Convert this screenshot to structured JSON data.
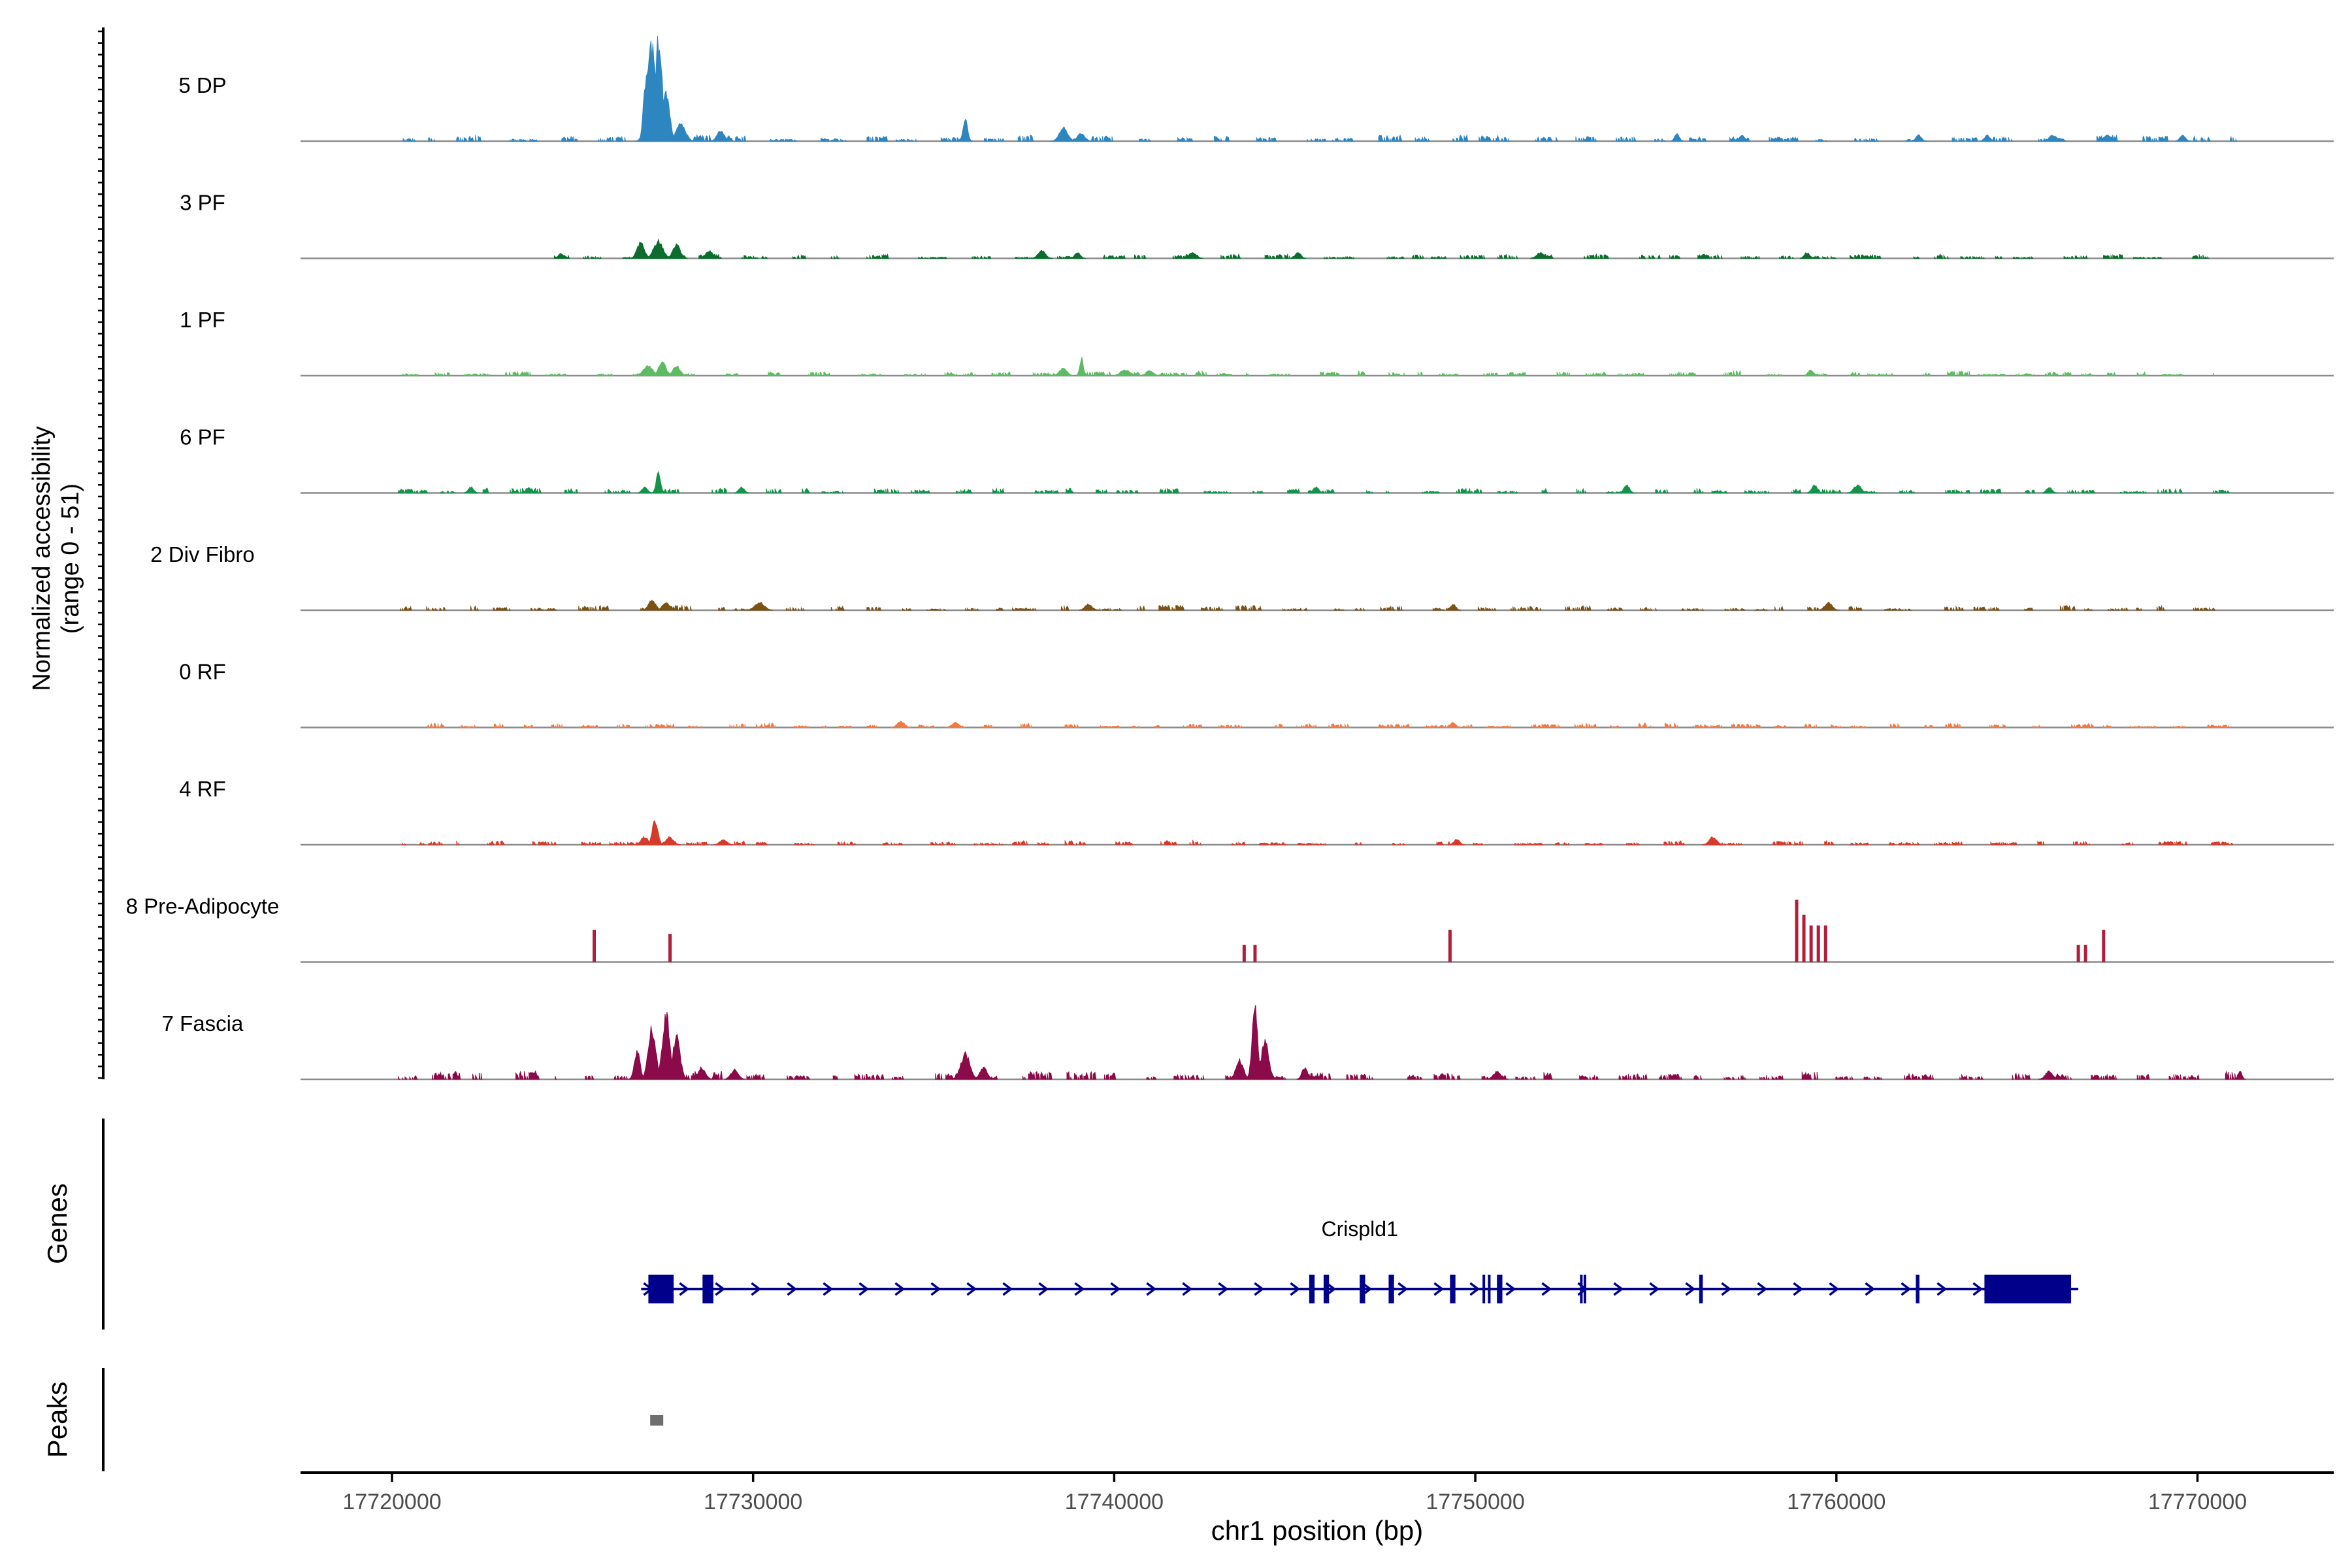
{
  "chart_data": {
    "type": "area",
    "title": "",
    "ylabel_line1": "Normalized accessibility",
    "ylabel_line2": "(range 0 - 51)",
    "ylim": [
      0,
      51
    ],
    "xlabel": "chr1 position (bp)",
    "xlim": [
      17717500,
      17773900
    ],
    "xticks": [
      17720000,
      17730000,
      17740000,
      17750000,
      17760000,
      17770000
    ],
    "xtick_labels": [
      "17720000",
      "17730000",
      "17740000",
      "17750000",
      "17760000",
      "17770000"
    ],
    "tracks": [
      {
        "name": "5 DP",
        "color": "#2E86C1",
        "peaks": [
          [
            17727200,
            50,
            250
          ],
          [
            17727400,
            51,
            200
          ],
          [
            17727050,
            36,
            150
          ],
          [
            17727600,
            24,
            200
          ],
          [
            17728000,
            9,
            250
          ],
          [
            17729100,
            5,
            200
          ],
          [
            17735900,
            11,
            120
          ],
          [
            17738600,
            7,
            220
          ],
          [
            17739100,
            4,
            200
          ],
          [
            17755600,
            4,
            120
          ],
          [
            17757400,
            3,
            150
          ],
          [
            17762300,
            3,
            150
          ],
          [
            17764200,
            3,
            150
          ],
          [
            17766000,
            3,
            200
          ],
          [
            17767500,
            3,
            200
          ],
          [
            17769600,
            3,
            150
          ]
        ],
        "noise": {
          "start": 17720300,
          "end": 17771100,
          "max": 2.5,
          "seed": 11
        }
      },
      {
        "name": "3 PF",
        "color": "#0B6E2E",
        "peaks": [
          [
            17726900,
            8,
            200
          ],
          [
            17727400,
            9,
            250
          ],
          [
            17727900,
            7,
            200
          ],
          [
            17728800,
            4,
            200
          ],
          [
            17724700,
            2.5,
            150
          ],
          [
            17738000,
            4,
            200
          ],
          [
            17739000,
            3,
            150
          ],
          [
            17742200,
            3,
            200
          ],
          [
            17745100,
            3,
            150
          ],
          [
            17751800,
            3,
            200
          ],
          [
            17759200,
            3,
            150
          ]
        ],
        "noise": {
          "start": 17724500,
          "end": 17771000,
          "max": 1.8,
          "seed": 23
        }
      },
      {
        "name": "1 PF",
        "color": "#5DBB63",
        "peaks": [
          [
            17727100,
            5,
            250
          ],
          [
            17727500,
            7,
            200
          ],
          [
            17727900,
            5,
            200
          ],
          [
            17739100,
            9,
            100
          ],
          [
            17738600,
            4,
            200
          ],
          [
            17740300,
            3,
            250
          ],
          [
            17741000,
            2.5,
            200
          ],
          [
            17759300,
            3,
            150
          ]
        ],
        "noise": {
          "start": 17720200,
          "end": 17770500,
          "max": 2.0,
          "seed": 37
        }
      },
      {
        "name": "6 PF",
        "color": "#14934A",
        "peaks": [
          [
            17727400,
            10,
            120
          ],
          [
            17727000,
            3,
            150
          ],
          [
            17722200,
            3,
            150
          ],
          [
            17723800,
            2.5,
            150
          ],
          [
            17729700,
            3,
            150
          ],
          [
            17745600,
            3,
            150
          ],
          [
            17754200,
            4,
            150
          ],
          [
            17759400,
            4,
            150
          ],
          [
            17760600,
            4,
            200
          ],
          [
            17765900,
            3,
            150
          ]
        ],
        "noise": {
          "start": 17720200,
          "end": 17771300,
          "max": 2.0,
          "seed": 51
        }
      },
      {
        "name": "2 Div Fibro",
        "color": "#7A5214",
        "peaks": [
          [
            17727200,
            5,
            200
          ],
          [
            17727600,
            4,
            200
          ],
          [
            17730200,
            4,
            250
          ],
          [
            17739300,
            3,
            200
          ],
          [
            17749400,
            3,
            150
          ],
          [
            17759800,
            4,
            200
          ]
        ],
        "noise": {
          "start": 17720200,
          "end": 17770500,
          "max": 2.0,
          "seed": 67
        }
      },
      {
        "name": "0 RF",
        "color": "#F07A45",
        "peaks": [
          [
            17734100,
            3,
            200
          ],
          [
            17735600,
            2.5,
            200
          ],
          [
            17749400,
            2.5,
            150
          ]
        ],
        "noise": {
          "start": 17721000,
          "end": 17770900,
          "max": 1.8,
          "seed": 79
        }
      },
      {
        "name": "4 RF",
        "color": "#D63A2A",
        "peaks": [
          [
            17727300,
            13,
            150
          ],
          [
            17727000,
            4,
            200
          ],
          [
            17727700,
            4,
            200
          ],
          [
            17729200,
            2.5,
            200
          ],
          [
            17749500,
            3,
            150
          ],
          [
            17756600,
            4,
            200
          ]
        ],
        "noise": {
          "start": 17720200,
          "end": 17771100,
          "max": 1.8,
          "seed": 97
        }
      },
      {
        "name": "8 Pre-Adipocyte",
        "color": "#B01E3C",
        "bars": [
          [
            17725600,
            15,
            90
          ],
          [
            17727700,
            13,
            90
          ],
          [
            17743600,
            8,
            90
          ],
          [
            17743900,
            8,
            90
          ],
          [
            17749300,
            15,
            90
          ],
          [
            17758900,
            29,
            90
          ],
          [
            17759100,
            22,
            90
          ],
          [
            17759300,
            17,
            90
          ],
          [
            17759500,
            17,
            90
          ],
          [
            17759700,
            17,
            90
          ],
          [
            17766700,
            8,
            90
          ],
          [
            17766900,
            8,
            90
          ],
          [
            17767400,
            15,
            90
          ]
        ],
        "noise": null
      },
      {
        "name": "7 Fascia",
        "color": "#8B0A4A",
        "peaks": [
          [
            17727200,
            26,
            200
          ],
          [
            17727600,
            33,
            200
          ],
          [
            17727900,
            22,
            200
          ],
          [
            17726800,
            15,
            150
          ],
          [
            17728600,
            6,
            200
          ],
          [
            17729500,
            5,
            200
          ],
          [
            17735900,
            13,
            250
          ],
          [
            17736400,
            6,
            200
          ],
          [
            17743900,
            38,
            150
          ],
          [
            17744200,
            20,
            200
          ],
          [
            17743500,
            10,
            200
          ],
          [
            17745300,
            6,
            150
          ],
          [
            17750600,
            4,
            200
          ],
          [
            17765900,
            4,
            200
          ],
          [
            17771200,
            4,
            100
          ]
        ],
        "noise": {
          "start": 17720200,
          "end": 17771200,
          "max": 3.5,
          "seed": 113
        }
      }
    ],
    "genes_panel": {
      "label": "Genes",
      "gene_name": "Crispld1",
      "color": "#00008B",
      "start": 17726900,
      "end": 17766700,
      "exons": [
        [
          17727100,
          17727800
        ],
        [
          17728600,
          17728900
        ],
        [
          17745400,
          17745550
        ],
        [
          17745800,
          17745950
        ],
        [
          17746800,
          17746950
        ],
        [
          17747600,
          17747750
        ],
        [
          17749300,
          17749450
        ],
        [
          17750200,
          17750250
        ],
        [
          17750350,
          17750400
        ],
        [
          17750600,
          17750750
        ],
        [
          17752900,
          17752950
        ],
        [
          17753000,
          17753050
        ],
        [
          17756200,
          17756300
        ],
        [
          17762200,
          17762300
        ],
        [
          17764100,
          17766500
        ]
      ]
    },
    "peaks_panel": {
      "label": "Peaks",
      "color": "#6E6E6E",
      "regions": [
        [
          17727150,
          17727500
        ]
      ]
    }
  }
}
